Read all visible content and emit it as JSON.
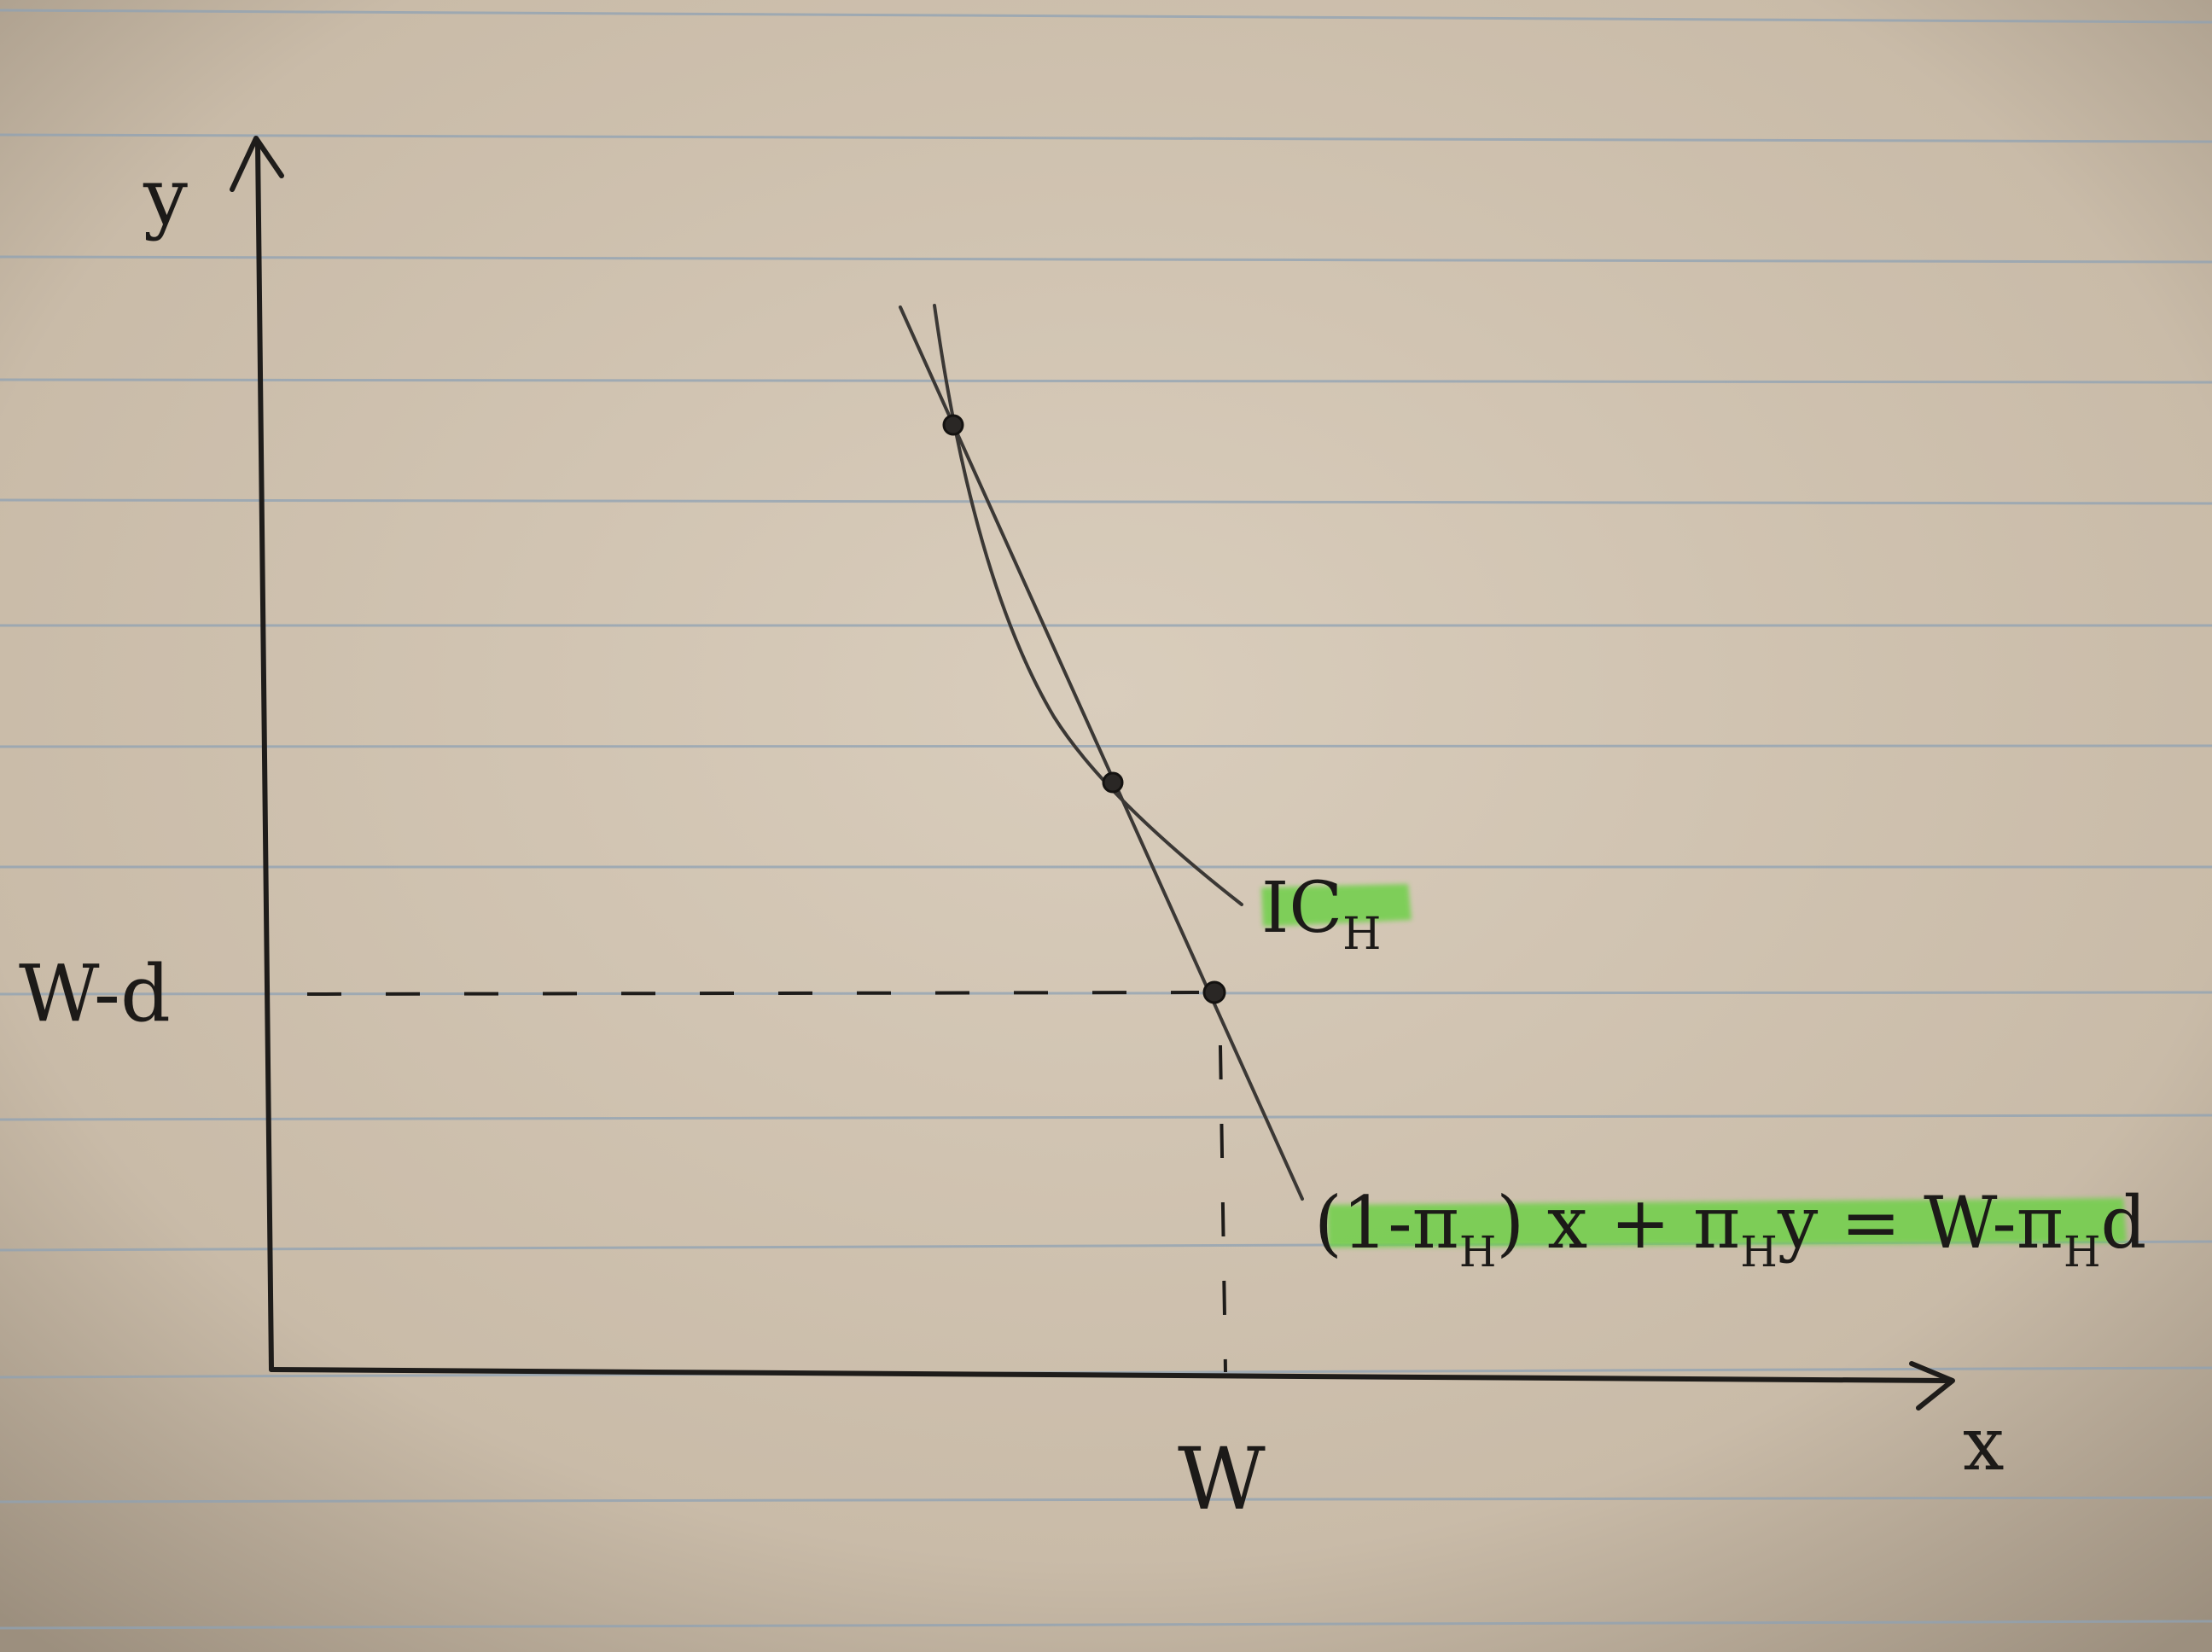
{
  "axes": {
    "x_label": "x",
    "y_label": "y"
  },
  "annotations": {
    "y_tick": "W-d",
    "x_tick": "W",
    "curve_label_main": "IC",
    "curve_label_sub": "H",
    "line_label": {
      "p1": "(1-π",
      "s1": "H",
      "p2": ") x + π",
      "s2": "H",
      "p3": "y = W-π",
      "s3": "H",
      "p4": "d"
    }
  },
  "colors": {
    "paper": "#cdbfae",
    "ruled_line": "#8fa2b4",
    "ink": "#1e1c1a",
    "highlighter": "#6fd04a"
  }
}
